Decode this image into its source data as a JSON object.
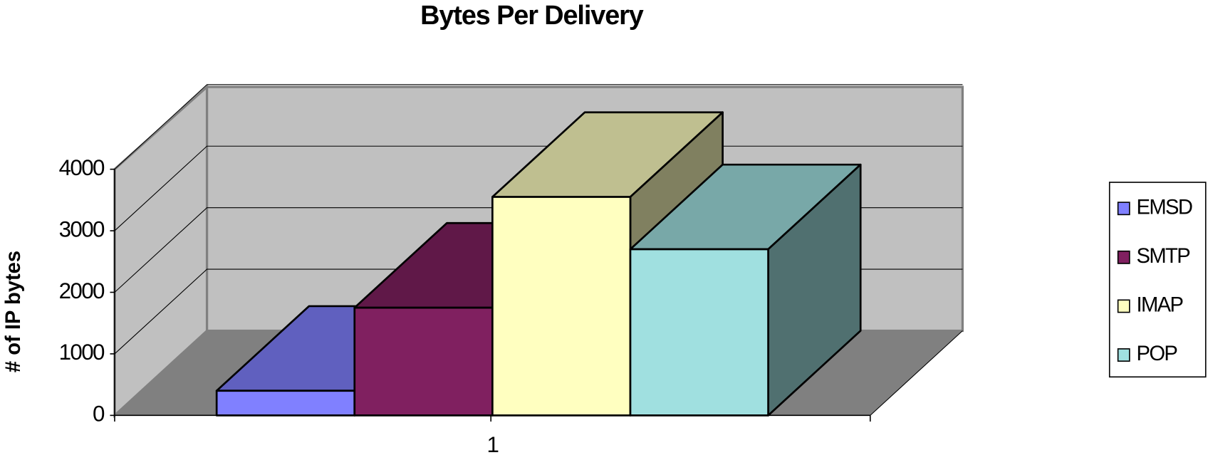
{
  "chart_data": {
    "type": "bar3d",
    "title": "Bytes Per Delivery",
    "y_label": "# of IP bytes",
    "categories": [
      "1"
    ],
    "series": [
      {
        "name": "EMSD",
        "color": "#8080ff",
        "values": [
          400
        ]
      },
      {
        "name": "SMTP",
        "color": "#802060",
        "values": [
          1750
        ]
      },
      {
        "name": "IMAP",
        "color": "#ffffc0",
        "values": [
          3550
        ]
      },
      {
        "name": "POP",
        "color": "#a0e0e0",
        "values": [
          2700
        ]
      }
    ],
    "ylim": [
      0,
      4000
    ],
    "yticks": [
      0,
      1000,
      2000,
      3000,
      4000
    ],
    "grid": true,
    "legend": "right"
  }
}
